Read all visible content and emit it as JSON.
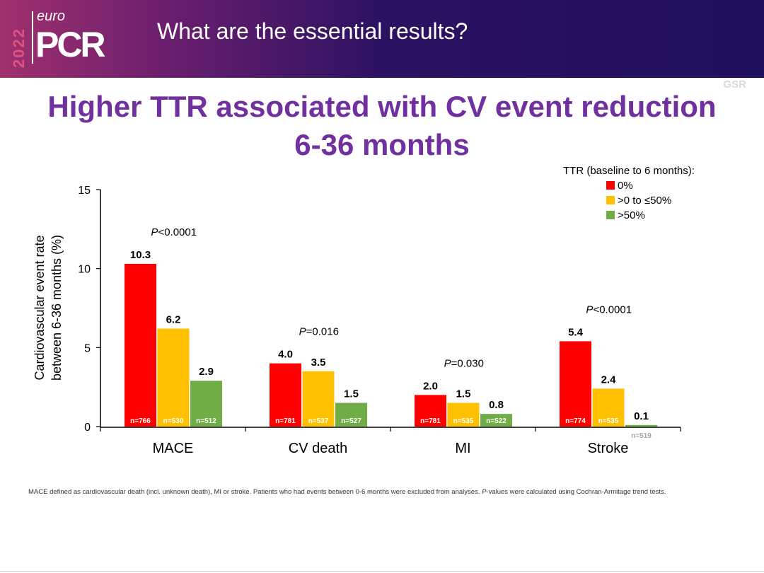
{
  "header": {
    "logo_year": "2022",
    "logo_euro": "euro",
    "logo_pcr": "PCR",
    "title": "What are the essential results?",
    "corner_tag": "GSR"
  },
  "headline": {
    "line1": "Higher TTR associated with CV event reduction",
    "line2": "6-36 months"
  },
  "chart_data": {
    "type": "bar",
    "ylabel_line1": "Cardiovascular event rate",
    "ylabel_line2": "between 6-36 months (%)",
    "ylim": [
      0,
      15
    ],
    "yticks": [
      0,
      5,
      10,
      15
    ],
    "grid": false,
    "legend_position": "top-right",
    "legend_title": "TTR (baseline to 6 months):",
    "categories": [
      "MACE",
      "CV death",
      "MI",
      "Stroke"
    ],
    "p_values": [
      {
        "prefix": "P",
        "rest": "<0.0001"
      },
      {
        "prefix": "P",
        "rest": "=0.016"
      },
      {
        "prefix": "P",
        "rest": "=0.030"
      },
      {
        "prefix": "P",
        "rest": "<0.0001"
      }
    ],
    "series": [
      {
        "name": "0%",
        "color": "#ff0000",
        "values": [
          10.3,
          4.0,
          2.0,
          5.4
        ],
        "labels": [
          "10.3",
          "4.0",
          "2.0",
          "5.4"
        ],
        "n": [
          "n=766",
          "n=781",
          "n=781",
          "n=774"
        ]
      },
      {
        "name": ">0 to ≤50%",
        "color": "#ffc000",
        "values": [
          6.2,
          3.5,
          1.5,
          2.4
        ],
        "labels": [
          "6.2",
          "3.5",
          "1.5",
          "2.4"
        ],
        "n": [
          "n=530",
          "n=537",
          "n=535",
          "n=535"
        ]
      },
      {
        "name": ">50%",
        "color": "#70ad47",
        "values": [
          2.9,
          1.5,
          0.8,
          0.1
        ],
        "labels": [
          "2.9",
          "1.5",
          "0.8",
          "0.1"
        ],
        "n": [
          "n=512",
          "n=527",
          "n=522",
          "n=519"
        ]
      }
    ]
  },
  "footnote": {
    "part1": "MACE defined as cardiovascular death (incl. unknown death), MI or stroke. Patients who had events between 0-6 months were excluded from analyses. ",
    "italic": "P",
    "part2": "-values were calculated using Cochran-Armitage trend tests."
  }
}
